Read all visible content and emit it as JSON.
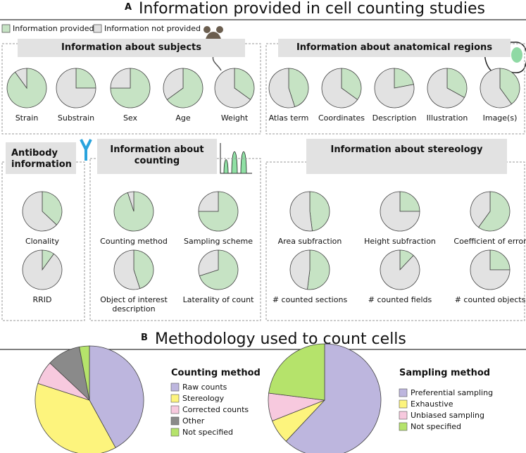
{
  "letter_a": "A",
  "title_a": "Information provided in cell counting studies",
  "legend": {
    "names": [
      "Information provided",
      "Information not provided"
    ],
    "colors": [
      "#c6e3c4",
      "#e2e2e2"
    ]
  },
  "letter_b": "B",
  "title_b": "Methodology used to count cells",
  "chart_data": [
    {
      "type": "pies",
      "title": "Information about subjects",
      "categories": [
        "Strain",
        "Substrain",
        "Sex",
        "Age",
        "Weight"
      ],
      "values": [
        90,
        25,
        75,
        65,
        35
      ]
    },
    {
      "type": "pies",
      "title": "Information about anatomical regions",
      "categories": [
        "Atlas term",
        "Coordinates",
        "Description",
        "Illustration",
        "Image(s)"
      ],
      "values": [
        45,
        35,
        22,
        33,
        40
      ]
    },
    {
      "type": "pies",
      "title": "Antibody information",
      "categories": [
        "Clonality",
        "RRID"
      ],
      "values": [
        37,
        10
      ]
    },
    {
      "type": "pies",
      "title": "Information about counting",
      "categories": [
        "Counting method",
        "Sampling scheme",
        "Object of interest description",
        "Laterality of count"
      ],
      "values": [
        95,
        75,
        45,
        70
      ]
    },
    {
      "type": "pies",
      "title": "Information about stereology",
      "categories": [
        "Area subfraction",
        "Height subfraction",
        "Coefficient of error",
        "# counted sections",
        "# counted fields",
        "# counted objects"
      ],
      "values": [
        48,
        25,
        60,
        52,
        12,
        25
      ]
    },
    {
      "type": "pie",
      "title": "Counting method",
      "categories": [
        "Raw counts",
        "Stereology",
        "Corrected counts",
        "Other",
        "Not specified"
      ],
      "values": [
        42,
        38,
        7,
        10,
        3
      ],
      "colors": [
        "#bdb6de",
        "#fdf47d",
        "#f7c9de",
        "#8a8a8a",
        "#b5e36b"
      ]
    },
    {
      "type": "pie",
      "title": "Sampling method",
      "categories": [
        "Preferential sampling",
        "Exhaustive",
        "Unbiased sampling",
        "Not specified"
      ],
      "values": [
        62,
        7,
        8,
        23
      ],
      "colors": [
        "#bdb6de",
        "#fdf47d",
        "#f7c9de",
        "#b5e36b"
      ]
    }
  ]
}
